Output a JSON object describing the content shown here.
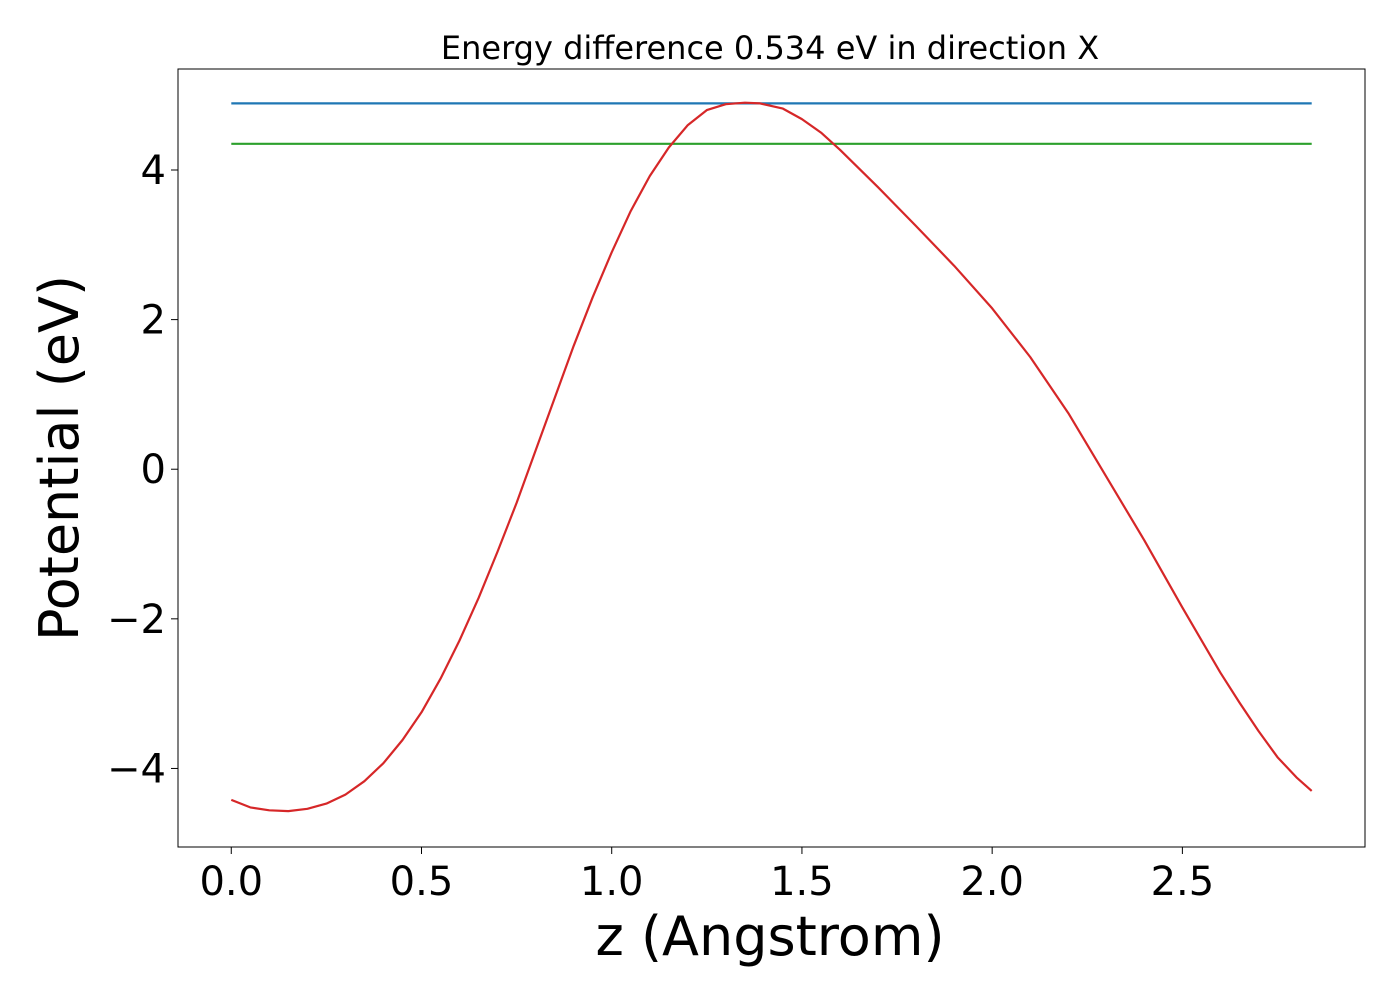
{
  "chart_data": {
    "type": "line",
    "title": "Energy difference 0.534 eV in direction X",
    "xlabel": "z (Angstrom)",
    "ylabel": "Potential (eV)",
    "xlim": [
      -0.14,
      2.98
    ],
    "ylim": [
      -5.05,
      5.35
    ],
    "xticks": [
      0.0,
      0.5,
      1.0,
      1.5,
      2.0,
      2.5
    ],
    "xtick_labels": [
      "0.0",
      "0.5",
      "1.0",
      "1.5",
      "2.0",
      "2.5"
    ],
    "yticks": [
      -4,
      -2,
      0,
      2,
      4
    ],
    "ytick_labels": [
      "−4",
      "−2",
      "0",
      "2",
      "4"
    ],
    "grid": false,
    "series": [
      {
        "color": "#1f77b4",
        "x": [
          0.0,
          2.84
        ],
        "y": [
          4.89,
          4.89
        ]
      },
      {
        "color": "#2ca02c",
        "x": [
          0.0,
          2.84
        ],
        "y": [
          4.35,
          4.35
        ]
      },
      {
        "color": "#d62728",
        "x": [
          0.0,
          0.05,
          0.1,
          0.15,
          0.2,
          0.25,
          0.3,
          0.35,
          0.4,
          0.45,
          0.5,
          0.55,
          0.6,
          0.65,
          0.7,
          0.75,
          0.8,
          0.85,
          0.9,
          0.95,
          1.0,
          1.05,
          1.1,
          1.15,
          1.2,
          1.25,
          1.3,
          1.35,
          1.39,
          1.45,
          1.5,
          1.55,
          1.6,
          1.7,
          1.8,
          1.9,
          2.0,
          2.1,
          2.2,
          2.3,
          2.4,
          2.5,
          2.6,
          2.65,
          2.7,
          2.75,
          2.8,
          2.84
        ],
        "y": [
          -4.42,
          -4.52,
          -4.56,
          -4.57,
          -4.54,
          -4.47,
          -4.35,
          -4.17,
          -3.93,
          -3.62,
          -3.25,
          -2.8,
          -2.29,
          -1.72,
          -1.1,
          -0.45,
          0.25,
          0.95,
          1.65,
          2.3,
          2.9,
          3.45,
          3.92,
          4.3,
          4.6,
          4.8,
          4.88,
          4.9,
          4.89,
          4.82,
          4.68,
          4.5,
          4.27,
          3.77,
          3.25,
          2.72,
          2.15,
          1.5,
          0.75,
          -0.1,
          -0.95,
          -1.85,
          -2.72,
          -3.12,
          -3.5,
          -3.85,
          -4.12,
          -4.3
        ]
      }
    ]
  }
}
